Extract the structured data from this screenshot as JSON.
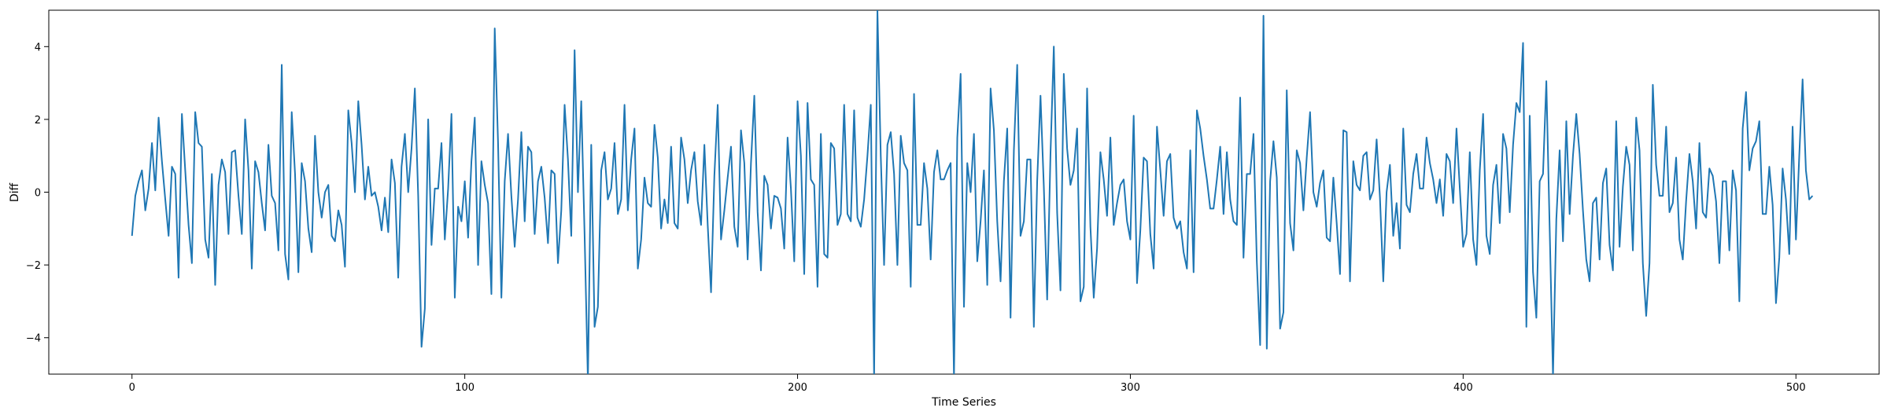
{
  "chart_data": {
    "type": "line",
    "title": "",
    "xlabel": "Time Series",
    "ylabel": "Diff",
    "xlim": [
      -25,
      525
    ],
    "ylim": [
      -5,
      5
    ],
    "xticks": [
      0,
      100,
      200,
      300,
      400,
      500
    ],
    "yticks": [
      -4,
      -2,
      0,
      2,
      4
    ],
    "x_tick_labels": [
      "0",
      "100",
      "200",
      "300",
      "400",
      "500"
    ],
    "y_tick_labels": [
      "−4",
      "−2",
      "0",
      "2",
      "4"
    ],
    "grid": false,
    "legend": "none",
    "line_color": "#1f77b4",
    "x_start": 0,
    "series": [
      {
        "values": [
          -1.2,
          -0.1,
          0.3,
          0.6,
          -0.5,
          0.1,
          1.35,
          0.05,
          2.05,
          0.85,
          -0.2,
          -1.2,
          0.7,
          0.5,
          -2.35,
          2.15,
          0.6,
          -0.9,
          -1.95,
          2.2,
          1.35,
          1.25,
          -1.3,
          -1.8,
          0.5,
          -2.55,
          0.2,
          0.9,
          0.55,
          -1.15,
          1.1,
          1.15,
          -0.1,
          -1.15,
          2.0,
          0.6,
          -2.1,
          0.85,
          0.55,
          -0.3,
          -1.05,
          1.3,
          -0.1,
          -0.3,
          -1.6,
          3.5,
          -1.7,
          -2.4,
          2.2,
          0.5,
          -2.2,
          0.8,
          0.3,
          -1.0,
          -1.65,
          1.55,
          0.0,
          -0.7,
          0.0,
          0.2,
          -1.2,
          -1.35,
          -0.5,
          -0.9,
          -2.05,
          2.25,
          1.35,
          0.0,
          2.5,
          1.3,
          -0.2,
          0.7,
          -0.1,
          0.0,
          -0.4,
          -1.05,
          -0.15,
          -1.1,
          0.9,
          0.25,
          -2.35,
          0.7,
          1.6,
          0.0,
          1.2,
          2.85,
          -0.1,
          -4.25,
          -3.2,
          2.0,
          -1.45,
          0.1,
          0.1,
          1.35,
          -1.3,
          0.1,
          2.15,
          -2.9,
          -0.4,
          -0.8,
          0.3,
          -1.25,
          0.85,
          2.05,
          -2.0,
          0.85,
          0.2,
          -0.3,
          -2.8,
          4.5,
          1.35,
          -2.9,
          0.3,
          1.6,
          -0.1,
          -1.5,
          -0.2,
          1.65,
          -0.8,
          1.25,
          1.1,
          -1.15,
          0.3,
          0.7,
          -0.15,
          -1.4,
          0.6,
          0.5,
          -1.95,
          -0.5,
          2.4,
          0.9,
          -1.2,
          3.9,
          0.0,
          2.5,
          -1.15,
          -5.2,
          1.3,
          -3.7,
          -3.15,
          0.6,
          1.1,
          -0.2,
          0.1,
          1.35,
          -0.6,
          -0.2,
          2.4,
          -0.5,
          0.9,
          1.75,
          -2.1,
          -1.3,
          0.4,
          -0.3,
          -0.4,
          1.85,
          0.95,
          -1.0,
          -0.2,
          -0.85,
          1.25,
          -0.85,
          -1.0,
          1.5,
          0.9,
          -0.3,
          0.6,
          1.1,
          -0.25,
          -0.9,
          1.3,
          -0.9,
          -2.75,
          0.45,
          2.4,
          -1.3,
          -0.5,
          0.4,
          1.25,
          -0.95,
          -1.5,
          1.7,
          0.8,
          -1.85,
          0.8,
          2.65,
          -0.55,
          -2.15,
          0.45,
          0.2,
          -1.0,
          -0.1,
          -0.15,
          -0.45,
          -1.55,
          1.5,
          0.1,
          -1.9,
          2.5,
          1.0,
          -2.25,
          2.45,
          0.35,
          0.2,
          -2.6,
          1.6,
          -1.7,
          -1.8,
          1.35,
          1.2,
          -0.9,
          -0.6,
          2.4,
          -0.6,
          -0.8,
          2.25,
          -0.7,
          -0.95,
          -0.2,
          1.0,
          2.4,
          -5.1,
          5.0,
          1.0,
          -2.0,
          1.3,
          1.65,
          0.5,
          -2.0,
          1.55,
          0.8,
          0.6,
          -2.6,
          2.7,
          -0.9,
          -0.9,
          0.8,
          0.1,
          -1.85,
          0.55,
          1.15,
          0.35,
          0.35,
          0.6,
          0.8,
          -5.1,
          1.5,
          3.25,
          -3.15,
          0.8,
          0.0,
          1.6,
          -1.9,
          -0.8,
          0.6,
          -2.55,
          2.85,
          1.7,
          -0.8,
          -2.45,
          0.3,
          1.75,
          -3.45,
          1.15,
          3.5,
          -1.2,
          -0.8,
          0.9,
          0.9,
          -3.7,
          0.3,
          2.65,
          0.15,
          -2.95,
          1.05,
          4.0,
          -0.55,
          -2.7,
          3.25,
          1.2,
          0.2,
          0.6,
          1.75,
          -3.0,
          -2.6,
          2.85,
          -0.95,
          -2.9,
          -1.55,
          1.1,
          0.35,
          -0.65,
          1.5,
          -0.9,
          -0.3,
          0.2,
          0.35,
          -0.8,
          -1.3,
          2.1,
          -2.5,
          -1.05,
          0.95,
          0.85,
          -1.15,
          -2.1,
          1.8,
          0.6,
          -0.65,
          0.85,
          1.05,
          -0.7,
          -1.0,
          -0.8,
          -1.65,
          -2.1,
          1.15,
          -2.2,
          2.25,
          1.75,
          1.0,
          0.35,
          -0.45,
          -0.45,
          0.35,
          1.25,
          -0.6,
          1.1,
          -0.2,
          -0.8,
          -0.9,
          2.6,
          -1.8,
          0.5,
          0.5,
          1.6,
          -1.9,
          -4.2,
          4.85,
          -4.3,
          0.3,
          1.4,
          0.4,
          -3.75,
          -3.3,
          2.8,
          -0.85,
          -1.6,
          1.15,
          0.8,
          -0.5,
          0.95,
          2.2,
          0.0,
          -0.4,
          0.25,
          0.6,
          -1.25,
          -1.35,
          0.4,
          -0.85,
          -2.25,
          1.7,
          1.65,
          -2.45,
          0.85,
          0.2,
          0.05,
          1.0,
          1.1,
          -0.2,
          0.05,
          1.45,
          -0.15,
          -2.45,
          0.0,
          0.75,
          -1.2,
          -0.3,
          -1.55,
          1.75,
          -0.35,
          -0.55,
          0.5,
          1.05,
          0.1,
          0.1,
          1.5,
          0.8,
          0.35,
          -0.3,
          0.35,
          -0.65,
          1.05,
          0.85,
          -0.3,
          1.75,
          0.1,
          -1.5,
          -1.15,
          1.1,
          -1.3,
          -2.0,
          0.6,
          2.15,
          -1.2,
          -1.7,
          0.2,
          0.75,
          -0.85,
          1.6,
          1.2,
          -0.55,
          1.3,
          2.45,
          2.2,
          4.1,
          -3.7,
          2.1,
          -2.2,
          -3.45,
          0.3,
          0.5,
          3.05,
          -1.0,
          -5.05,
          -0.75,
          1.15,
          -1.35,
          1.95,
          -0.6,
          1.0,
          2.15,
          1.05,
          -0.5,
          -1.85,
          -2.45,
          -0.3,
          -0.15,
          -1.85,
          0.25,
          0.65,
          -1.45,
          -2.15,
          1.95,
          -1.5,
          0.15,
          1.25,
          0.75,
          -1.6,
          2.05,
          1.15,
          -1.95,
          -3.4,
          -1.95,
          2.95,
          0.75,
          -0.1,
          -0.1,
          1.8,
          -0.55,
          -0.3,
          0.95,
          -1.3,
          -1.85,
          -0.25,
          1.05,
          0.3,
          -1.0,
          1.35,
          -0.55,
          -0.7,
          0.65,
          0.45,
          -0.25,
          -1.95,
          0.3,
          0.3,
          -1.6,
          0.6,
          0.05,
          -3.0,
          1.75,
          2.75,
          0.6,
          1.2,
          1.4,
          1.95,
          -0.6,
          -0.6,
          0.7,
          -0.35,
          -3.05,
          -1.8,
          0.65,
          -0.2,
          -1.7,
          1.8,
          -1.3,
          1.0,
          3.1,
          0.6,
          -0.2,
          -0.1
        ]
      }
    ]
  }
}
